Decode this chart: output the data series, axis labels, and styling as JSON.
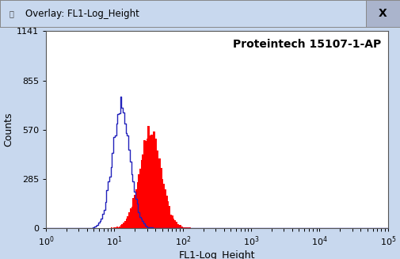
{
  "title_bar": "Overlay: FL1-Log_Height",
  "annotation": "Proteintech 15107-1-AP",
  "xlabel": "FL1-Log_Height",
  "ylabel": "Counts",
  "xlim": [
    1,
    100000
  ],
  "ylim": [
    0,
    1141
  ],
  "yticks": [
    0,
    285,
    570,
    855,
    1141
  ],
  "bg_color": "#c8d8ee",
  "plot_bg_color": "#ffffff",
  "title_bar_color": "#c8d8ee",
  "blue_peak_log10_mean": 1.1,
  "blue_peak_log10_std": 0.13,
  "blue_peak_scale": 760,
  "red_peak_log10_mean": 1.52,
  "red_peak_log10_std": 0.16,
  "red_peak_scale": 590,
  "red_fill_color": "#ff0000",
  "blue_line_color": "#2222bb",
  "annotation_fontsize": 10,
  "xlabel_fontsize": 9,
  "ylabel_fontsize": 9,
  "tick_fontsize": 8
}
